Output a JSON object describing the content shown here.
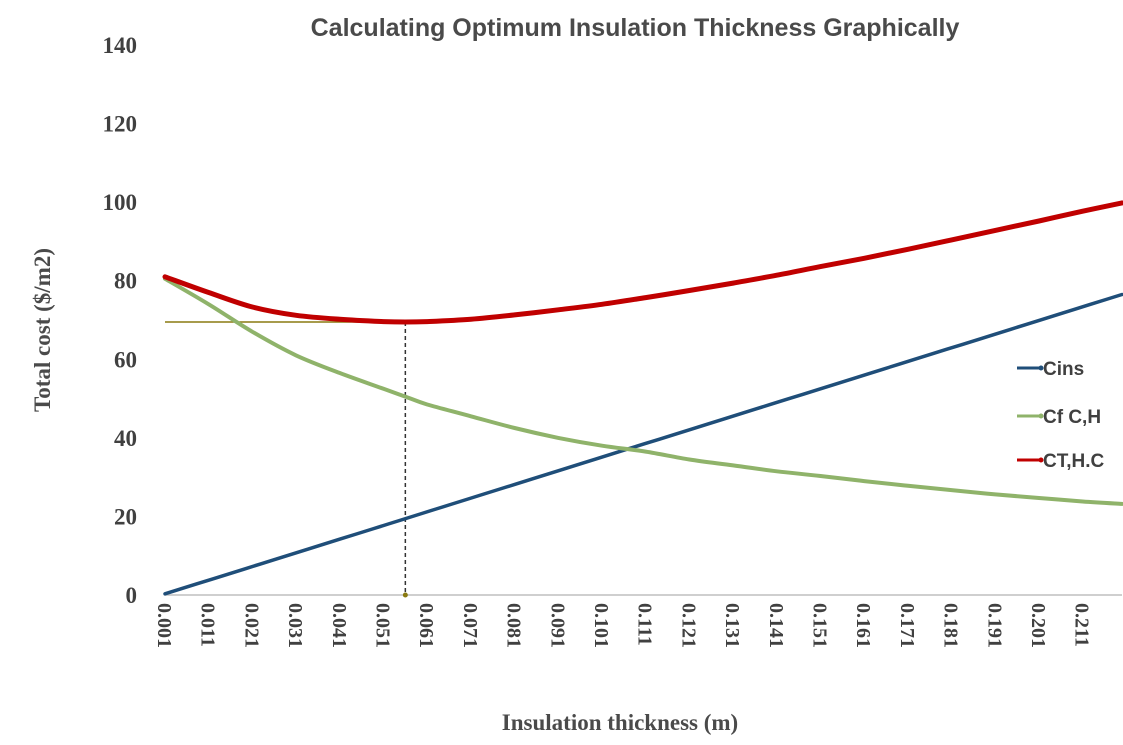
{
  "chart_data": {
    "type": "line",
    "title": "Calculating Optimum Insulation Thickness Graphically",
    "xlabel": "Insulation thickness (m)",
    "ylabel": "Total cost ($/m2)",
    "xlim": [
      0.001,
      0.22
    ],
    "ylim": [
      0,
      140
    ],
    "yticks": [
      0,
      20,
      40,
      60,
      80,
      100,
      120,
      140
    ],
    "xticks": [
      "0.001",
      "0.011",
      "0.021",
      "0.031",
      "0.041",
      "0.051",
      "0.061",
      "0.071",
      "0.081",
      "0.091",
      "0.101",
      "0.111",
      "0.121",
      "0.131",
      "0.141",
      "0.151",
      "0.161",
      "0.171",
      "0.181",
      "0.191",
      "0.201",
      "0.211"
    ],
    "grid": false,
    "legend_position": "right",
    "series": [
      {
        "name": "Cins",
        "color": "#1f4e79",
        "x": [
          0.001,
          0.22
        ],
        "y": [
          0.3,
          76.5
        ]
      },
      {
        "name": "Cf C,H",
        "color": "#8fb36a",
        "x": [
          0.001,
          0.011,
          0.021,
          0.031,
          0.041,
          0.051,
          0.056,
          0.061,
          0.071,
          0.081,
          0.091,
          0.101,
          0.111,
          0.121,
          0.131,
          0.141,
          0.151,
          0.161,
          0.171,
          0.181,
          0.191,
          0.201,
          0.211,
          0.22
        ],
        "y": [
          80.5,
          74.0,
          67.0,
          61.0,
          56.5,
          52.5,
          50.5,
          48.5,
          45.5,
          42.5,
          40.0,
          38.0,
          36.5,
          34.5,
          33.0,
          31.5,
          30.3,
          29.0,
          27.8,
          26.7,
          25.6,
          24.7,
          23.8,
          23.2
        ]
      },
      {
        "name": "CT,H.C",
        "color": "#c00000",
        "x": [
          0.001,
          0.011,
          0.021,
          0.031,
          0.041,
          0.051,
          0.056,
          0.061,
          0.071,
          0.081,
          0.091,
          0.101,
          0.111,
          0.121,
          0.131,
          0.141,
          0.151,
          0.161,
          0.171,
          0.181,
          0.191,
          0.201,
          0.211,
          0.22
        ],
        "y": [
          81.0,
          77.0,
          73.3,
          71.2,
          70.2,
          69.6,
          69.5,
          69.6,
          70.2,
          71.3,
          72.6,
          74.0,
          75.7,
          77.5,
          79.4,
          81.4,
          83.6,
          85.7,
          88.0,
          90.4,
          92.8,
          95.2,
          97.7,
          99.8
        ]
      }
    ],
    "annotation": {
      "optimum_x": 0.056,
      "optimum_y": 69.5,
      "color_h": "#8a7a10",
      "color_v": "#333333"
    }
  }
}
